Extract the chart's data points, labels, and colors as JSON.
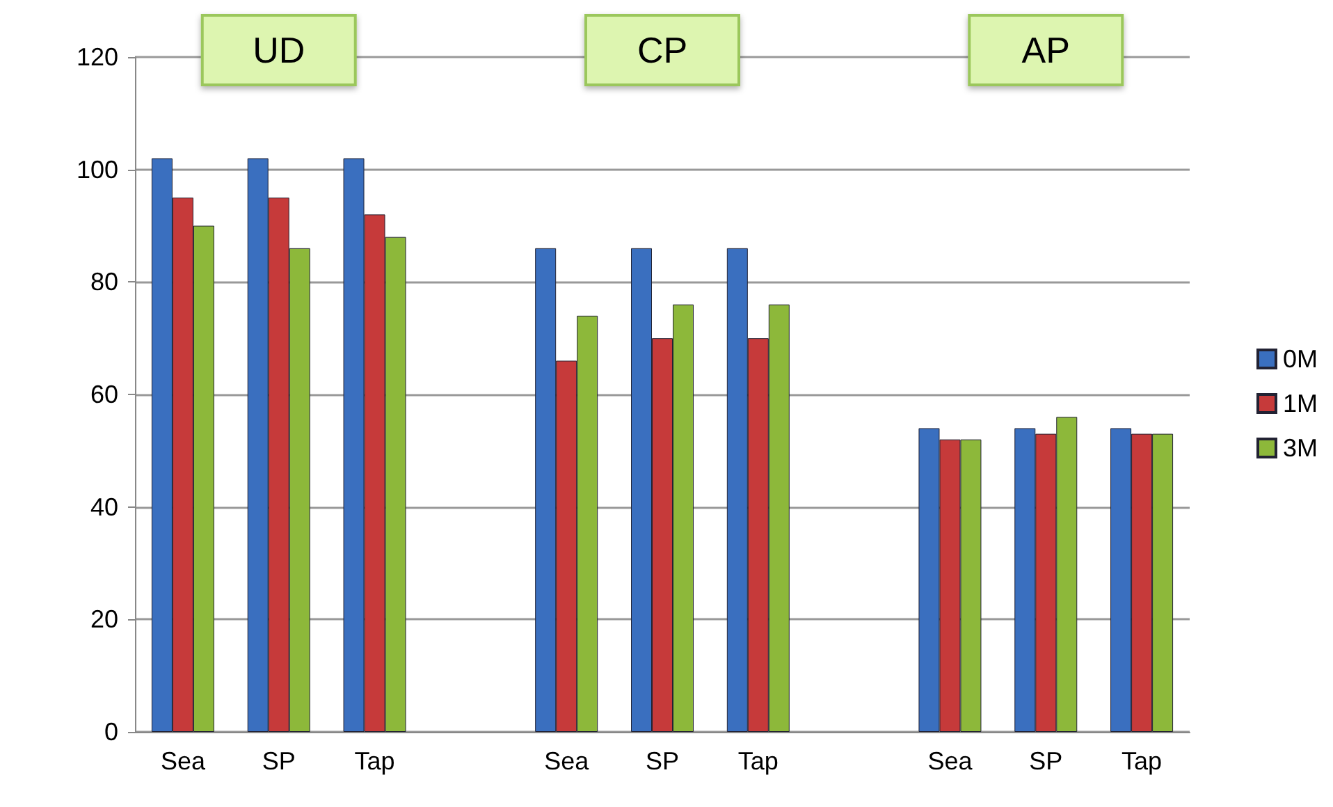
{
  "chart_data": {
    "type": "bar",
    "categories": [
      "Sea",
      "SP",
      "Tap",
      null,
      "Sea",
      "SP",
      "Tap",
      null,
      "Sea",
      "SP",
      "Tap"
    ],
    "series": [
      {
        "name": "0M",
        "color": "#3a6fbf",
        "values": [
          102,
          102,
          102,
          null,
          86,
          86,
          86,
          null,
          54,
          54,
          54
        ]
      },
      {
        "name": "1M",
        "color": "#c63a3a",
        "values": [
          95,
          95,
          92,
          null,
          66,
          70,
          70,
          null,
          52,
          53,
          53
        ]
      },
      {
        "name": "3M",
        "color": "#8db83a",
        "values": [
          90,
          86,
          88,
          null,
          74,
          76,
          76,
          null,
          52,
          56,
          53
        ]
      }
    ],
    "ylim": [
      0,
      120
    ],
    "yticks": [
      0,
      20,
      40,
      60,
      80,
      100,
      120
    ],
    "grid": "y",
    "legend": "right",
    "annotations": [
      "UD",
      "CP",
      "AP"
    ]
  }
}
